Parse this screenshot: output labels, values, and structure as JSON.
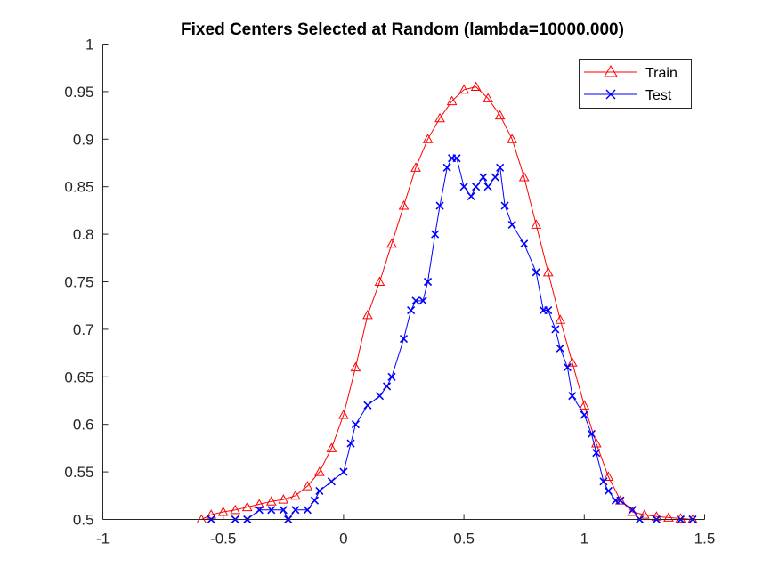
{
  "chart_data": {
    "type": "line",
    "title": "Fixed Centers Selected at Random (lambda=10000.000)",
    "xlabel": "",
    "ylabel": "",
    "xlim": [
      -1,
      1.5
    ],
    "ylim": [
      0.5,
      1
    ],
    "x_ticks": [
      -1,
      -0.5,
      0,
      0.5,
      1,
      1.5
    ],
    "x_tick_labels": [
      "-1",
      "-0.5",
      "0",
      "0.5",
      "1",
      "1.5"
    ],
    "y_ticks": [
      0.5,
      0.55,
      0.6,
      0.65,
      0.7,
      0.75,
      0.8,
      0.85,
      0.9,
      0.95,
      1
    ],
    "y_tick_labels": [
      "0.5",
      "0.55",
      "0.6",
      "0.65",
      "0.7",
      "0.75",
      "0.8",
      "0.85",
      "0.9",
      "0.95",
      "1"
    ],
    "grid": false,
    "legend_position": "top-right",
    "series": [
      {
        "name": "Train",
        "color": "#ff0000",
        "marker": "triangle",
        "points": [
          [
            -0.59,
            0.5
          ],
          [
            -0.55,
            0.505
          ],
          [
            -0.5,
            0.508
          ],
          [
            -0.45,
            0.51
          ],
          [
            -0.4,
            0.513
          ],
          [
            -0.35,
            0.516
          ],
          [
            -0.3,
            0.519
          ],
          [
            -0.25,
            0.521
          ],
          [
            -0.2,
            0.525
          ],
          [
            -0.15,
            0.535
          ],
          [
            -0.1,
            0.55
          ],
          [
            -0.05,
            0.575
          ],
          [
            0.0,
            0.61
          ],
          [
            0.05,
            0.66
          ],
          [
            0.1,
            0.715
          ],
          [
            0.15,
            0.75
          ],
          [
            0.2,
            0.79
          ],
          [
            0.25,
            0.83
          ],
          [
            0.3,
            0.87
          ],
          [
            0.35,
            0.9
          ],
          [
            0.4,
            0.922
          ],
          [
            0.45,
            0.94
          ],
          [
            0.5,
            0.952
          ],
          [
            0.55,
            0.955
          ],
          [
            0.6,
            0.943
          ],
          [
            0.65,
            0.925
          ],
          [
            0.7,
            0.9
          ],
          [
            0.75,
            0.86
          ],
          [
            0.8,
            0.81
          ],
          [
            0.85,
            0.76
          ],
          [
            0.9,
            0.71
          ],
          [
            0.95,
            0.665
          ],
          [
            1.0,
            0.62
          ],
          [
            1.05,
            0.58
          ],
          [
            1.1,
            0.545
          ],
          [
            1.15,
            0.52
          ],
          [
            1.2,
            0.508
          ],
          [
            1.25,
            0.505
          ],
          [
            1.3,
            0.503
          ],
          [
            1.35,
            0.502
          ],
          [
            1.4,
            0.501
          ],
          [
            1.45,
            0.5
          ]
        ]
      },
      {
        "name": "Test",
        "color": "#0000ff",
        "marker": "x",
        "points": [
          [
            -0.55,
            0.5
          ],
          [
            -0.45,
            0.5
          ],
          [
            -0.4,
            0.5
          ],
          [
            -0.35,
            0.51
          ],
          [
            -0.3,
            0.51
          ],
          [
            -0.25,
            0.51
          ],
          [
            -0.23,
            0.5
          ],
          [
            -0.2,
            0.51
          ],
          [
            -0.15,
            0.51
          ],
          [
            -0.12,
            0.52
          ],
          [
            -0.1,
            0.53
          ],
          [
            -0.05,
            0.54
          ],
          [
            0.0,
            0.55
          ],
          [
            0.03,
            0.58
          ],
          [
            0.05,
            0.6
          ],
          [
            0.1,
            0.62
          ],
          [
            0.15,
            0.63
          ],
          [
            0.18,
            0.64
          ],
          [
            0.2,
            0.65
          ],
          [
            0.25,
            0.69
          ],
          [
            0.28,
            0.72
          ],
          [
            0.3,
            0.73
          ],
          [
            0.33,
            0.73
          ],
          [
            0.35,
            0.75
          ],
          [
            0.38,
            0.8
          ],
          [
            0.4,
            0.83
          ],
          [
            0.43,
            0.87
          ],
          [
            0.45,
            0.88
          ],
          [
            0.47,
            0.88
          ],
          [
            0.5,
            0.85
          ],
          [
            0.53,
            0.84
          ],
          [
            0.55,
            0.85
          ],
          [
            0.58,
            0.86
          ],
          [
            0.6,
            0.85
          ],
          [
            0.63,
            0.86
          ],
          [
            0.65,
            0.87
          ],
          [
            0.67,
            0.83
          ],
          [
            0.7,
            0.81
          ],
          [
            0.75,
            0.79
          ],
          [
            0.8,
            0.76
          ],
          [
            0.83,
            0.72
          ],
          [
            0.85,
            0.72
          ],
          [
            0.88,
            0.7
          ],
          [
            0.9,
            0.68
          ],
          [
            0.93,
            0.66
          ],
          [
            0.95,
            0.63
          ],
          [
            1.0,
            0.61
          ],
          [
            1.03,
            0.59
          ],
          [
            1.05,
            0.57
          ],
          [
            1.08,
            0.54
          ],
          [
            1.1,
            0.53
          ],
          [
            1.13,
            0.52
          ],
          [
            1.15,
            0.52
          ],
          [
            1.2,
            0.51
          ],
          [
            1.23,
            0.5
          ],
          [
            1.3,
            0.5
          ],
          [
            1.4,
            0.5
          ],
          [
            1.45,
            0.5
          ]
        ]
      }
    ]
  }
}
